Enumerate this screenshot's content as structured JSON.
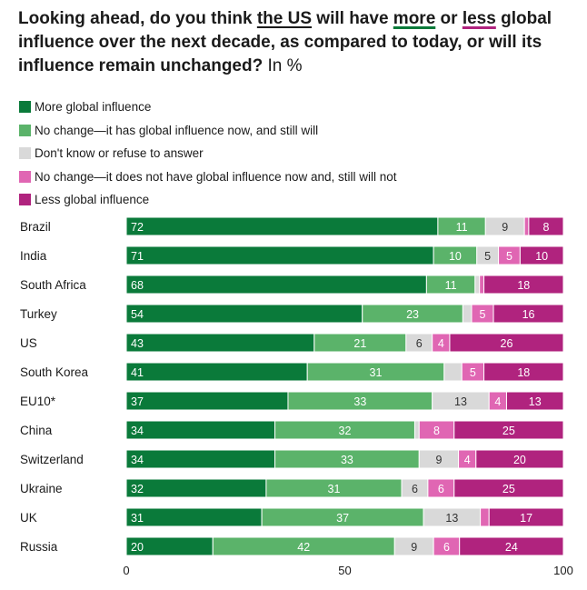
{
  "title": {
    "part1": "Looking ahead, do you think ",
    "us": "the US",
    "part2": " will have ",
    "more": "more",
    "part3": " or ",
    "less": "less",
    "part4": " global influence over the next decade, as compared to today, or will its influence remain unchanged?",
    "unit": " In %"
  },
  "colors": {
    "more": "#0a7a3a",
    "no_change_has": "#5bb36a",
    "dont_know": "#d9d9d9",
    "no_change_not": "#e066b3",
    "less": "#b0237e"
  },
  "chart_data": {
    "type": "bar",
    "orientation": "horizontal",
    "stacked": true,
    "title": "Looking ahead, do you think the US will have more or less global influence over the next decade, as compared to today, or will its influence remain unchanged? In %",
    "xlim": [
      0,
      100
    ],
    "xticks": [
      "0",
      "50",
      "100"
    ],
    "grid": false,
    "legend_position": "top-left",
    "categories": [
      "Brazil",
      "India",
      "South Africa",
      "Turkey",
      "US",
      "South Korea",
      "EU10*",
      "China",
      "Switzerland",
      "Ukraine",
      "UK",
      "Russia"
    ],
    "series": [
      {
        "name": "More global influence",
        "key": "more",
        "values": [
          72,
          71,
          68,
          54,
          43,
          41,
          37,
          34,
          34,
          32,
          31,
          20
        ],
        "labels": [
          "72",
          "71",
          "68",
          "54",
          "43",
          "41",
          "37",
          "34",
          "34",
          "32",
          "31",
          "20"
        ]
      },
      {
        "name": "No change—it has global influence now, and still will",
        "key": "no_change_has",
        "values": [
          11,
          10,
          11,
          23,
          21,
          31,
          33,
          32,
          33,
          31,
          37,
          42
        ],
        "labels": [
          "11",
          "10",
          "11",
          "23",
          "21",
          "31",
          "33",
          "32",
          "33",
          "31",
          "37",
          "42"
        ]
      },
      {
        "name": "Don't know or refuse to answer",
        "key": "dont_know",
        "values": [
          9,
          5,
          1,
          2,
          6,
          4,
          13,
          1,
          9,
          6,
          13,
          9
        ],
        "labels": [
          "9",
          "5",
          "",
          "",
          "6",
          "",
          "13",
          "",
          "9",
          "6",
          "13",
          "9"
        ]
      },
      {
        "name": "No change—it does not have global influence now and, still will not",
        "key": "no_change_not",
        "values": [
          1,
          5,
          1,
          5,
          4,
          5,
          4,
          8,
          4,
          6,
          2,
          6
        ],
        "labels": [
          "",
          "5",
          "",
          "5",
          "4",
          "5",
          "4",
          "8",
          "4",
          "6",
          "",
          "6"
        ]
      },
      {
        "name": "Less global influence",
        "key": "less",
        "values": [
          8,
          10,
          18,
          16,
          26,
          18,
          13,
          25,
          20,
          25,
          17,
          24
        ],
        "labels": [
          "8",
          "10",
          "18",
          "16",
          "26",
          "18",
          "13",
          "25",
          "20",
          "25",
          "17",
          "24"
        ]
      }
    ]
  }
}
